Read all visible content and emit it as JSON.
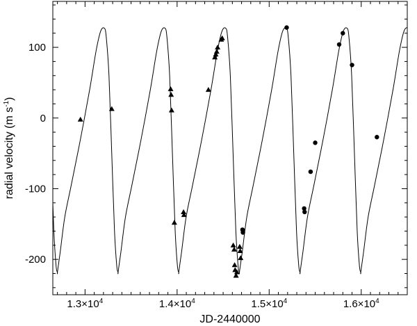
{
  "chart_data": {
    "type": "scatter",
    "title": "",
    "xlabel": "JD-2440000",
    "ylabel": "radial velocity (m s",
    "ylabel_sup": "-1",
    "ylabel_close": ")",
    "xlim": [
      12650,
      16500
    ],
    "ylim": [
      -250,
      165
    ],
    "grid": false,
    "legend": "none",
    "x_ticks": [
      {
        "value": 13000,
        "mantissa": "1.3",
        "exp": "4"
      },
      {
        "value": 14000,
        "mantissa": "1.4",
        "exp": "4"
      },
      {
        "value": 15000,
        "mantissa": "1.5",
        "exp": "4"
      },
      {
        "value": 16000,
        "mantissa": "1.6",
        "exp": "4"
      }
    ],
    "x_tick_times": "×10",
    "y_ticks": [
      {
        "value": 100,
        "label": "100"
      },
      {
        "value": 0,
        "label": "0"
      },
      {
        "value": -100,
        "label": "-100"
      },
      {
        "value": -200,
        "label": "-200"
      }
    ],
    "model_curve": {
      "period": 659,
      "points": [
        {
          "x": 12700,
          "y": -218
        },
        {
          "x": 12730,
          "y": -190
        },
        {
          "x": 12780,
          "y": -140
        },
        {
          "x": 12850,
          "y": -95
        },
        {
          "x": 12950,
          "y": -30
        },
        {
          "x": 13050,
          "y": 40
        },
        {
          "x": 13120,
          "y": 95
        },
        {
          "x": 13170,
          "y": 123
        },
        {
          "x": 13210,
          "y": 127
        },
        {
          "x": 13230,
          "y": 115
        },
        {
          "x": 13260,
          "y": 60
        },
        {
          "x": 13290,
          "y": -50
        },
        {
          "x": 13320,
          "y": -160
        },
        {
          "x": 13345,
          "y": -210
        },
        {
          "x": 13359,
          "y": -218
        }
      ]
    },
    "series": [
      {
        "marker": "triangle",
        "points": [
          {
            "x": 12950,
            "y": -2
          },
          {
            "x": 13290,
            "y": 13
          },
          {
            "x": 13930,
            "y": 41
          },
          {
            "x": 13935,
            "y": 33
          },
          {
            "x": 13940,
            "y": 11
          },
          {
            "x": 13970,
            "y": -148
          },
          {
            "x": 14070,
            "y": -133
          },
          {
            "x": 14075,
            "y": -137
          },
          {
            "x": 14340,
            "y": 40
          },
          {
            "x": 14410,
            "y": 86
          },
          {
            "x": 14420,
            "y": 90
          },
          {
            "x": 14430,
            "y": 94
          },
          {
            "x": 14440,
            "y": 100
          },
          {
            "x": 14480,
            "y": 111
          },
          {
            "x": 14490,
            "y": 113
          },
          {
            "x": 14610,
            "y": -180
          },
          {
            "x": 14620,
            "y": -186
          },
          {
            "x": 14625,
            "y": -208
          },
          {
            "x": 14630,
            "y": -215
          },
          {
            "x": 14640,
            "y": -223
          },
          {
            "x": 14650,
            "y": -218
          },
          {
            "x": 14680,
            "y": -182
          },
          {
            "x": 14685,
            "y": -188
          },
          {
            "x": 14690,
            "y": -198
          }
        ]
      },
      {
        "marker": "circle",
        "points": [
          {
            "x": 15190,
            "y": 128
          },
          {
            "x": 15380,
            "y": -128
          },
          {
            "x": 15385,
            "y": -133
          },
          {
            "x": 15450,
            "y": -76
          },
          {
            "x": 15500,
            "y": -35
          },
          {
            "x": 15760,
            "y": 104
          },
          {
            "x": 15800,
            "y": 120
          },
          {
            "x": 15900,
            "y": 75
          },
          {
            "x": 16170,
            "y": -27
          },
          {
            "x": 14710,
            "y": -158
          },
          {
            "x": 14715,
            "y": -162
          }
        ]
      }
    ]
  }
}
